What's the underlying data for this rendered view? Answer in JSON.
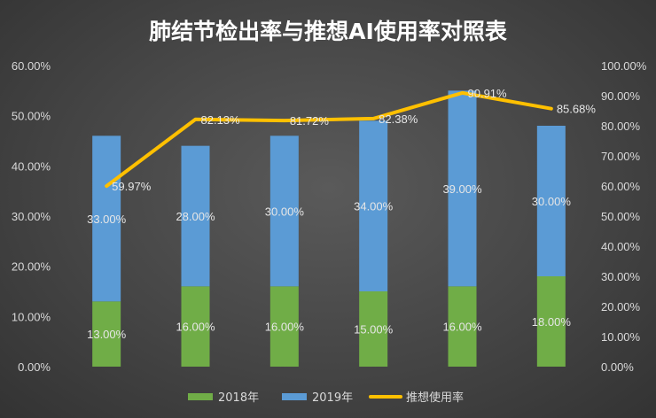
{
  "chart_data": {
    "type": "bar",
    "title": "肺结节检出率与推想AI使用率对照表",
    "categories": [
      "",
      "",
      "",
      "",
      "",
      ""
    ],
    "series": [
      {
        "name": "2018年",
        "type": "bar",
        "axis": "left",
        "color": "#70ad47",
        "values": [
          13.0,
          16.0,
          16.0,
          15.0,
          16.0,
          18.0
        ],
        "labels": [
          "13.00%",
          "16.00%",
          "16.00%",
          "15.00%",
          "16.00%",
          "18.00%"
        ]
      },
      {
        "name": "2019年",
        "type": "bar",
        "axis": "left",
        "color": "#5b9bd5",
        "values": [
          33.0,
          28.0,
          30.0,
          34.0,
          39.0,
          30.0
        ],
        "labels": [
          "33.00%",
          "28.00%",
          "30.00%",
          "34.00%",
          "39.00%",
          "30.00%"
        ]
      },
      {
        "name": "推想使用率",
        "type": "line",
        "axis": "right",
        "color": "#ffc000",
        "values": [
          59.97,
          82.13,
          81.72,
          82.38,
          90.91,
          85.68
        ],
        "labels": [
          "59.97%",
          "82.13%",
          "81.72%",
          "82.38%",
          "90.91%",
          "85.68%"
        ]
      }
    ],
    "left_axis": {
      "ylim": [
        0,
        60
      ],
      "ticks": [
        "0.00%",
        "10.00%",
        "20.00%",
        "30.00%",
        "40.00%",
        "50.00%",
        "60.00%"
      ]
    },
    "right_axis": {
      "ylim": [
        0,
        100
      ],
      "ticks": [
        "0.00%",
        "10.00%",
        "20.00%",
        "30.00%",
        "40.00%",
        "50.00%",
        "60.00%",
        "70.00%",
        "80.00%",
        "90.00%",
        "100.00%"
      ]
    },
    "stacked": true,
    "grid": false,
    "legend_position": "bottom"
  }
}
